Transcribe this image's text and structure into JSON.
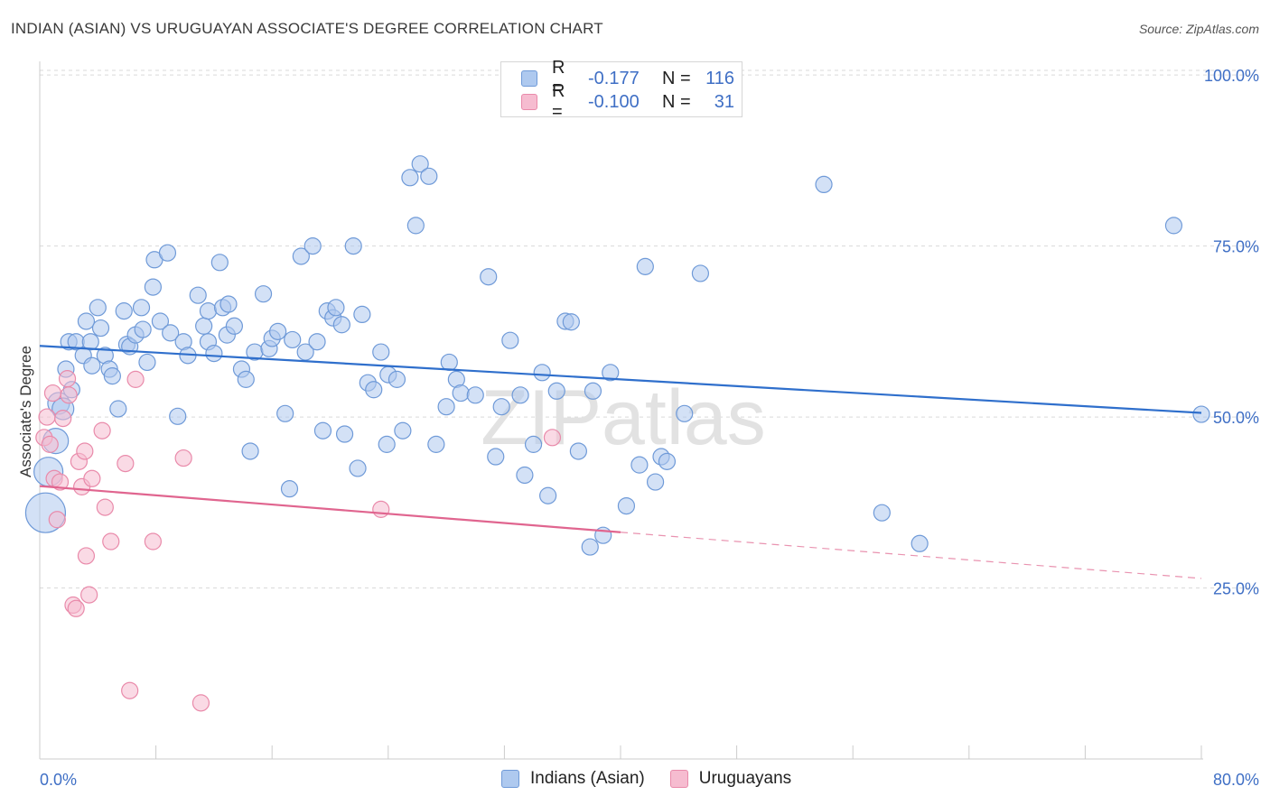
{
  "title": "INDIAN (ASIAN) VS URUGUAYAN ASSOCIATE'S DEGREE CORRELATION CHART",
  "source": "Source: ZipAtlas.com",
  "watermark": "ZIPatlas",
  "colors": {
    "blue_fill": "#aec9ef",
    "blue_stroke": "#6f9ad8",
    "blue_line": "#2f6fcc",
    "pink_fill": "#f6bcd0",
    "pink_stroke": "#e98aaa",
    "pink_line": "#e0658f",
    "grid": "#d9d9d9",
    "tick_text": "#3f6fc5"
  },
  "legend": {
    "rows": [
      {
        "r_label": "R =",
        "r_value": "-0.177",
        "n_label": "N =",
        "n_value": "116"
      },
      {
        "r_label": "R =",
        "r_value": "-0.100",
        "n_label": "N =",
        "n_value": "31"
      }
    ]
  },
  "bottom_legend": [
    "Indians (Asian)",
    "Uruguayans"
  ],
  "chart_data": {
    "type": "scatter",
    "title": "INDIAN (ASIAN) VS URUGUAYAN ASSOCIATE'S DEGREE CORRELATION CHART",
    "xlabel": "",
    "ylabel": "Associate's Degree",
    "xlim": [
      0,
      80
    ],
    "ylim": [
      0,
      102
    ],
    "x_tick_labels": [
      "0.0%",
      "80.0%"
    ],
    "y_ticks": [
      25,
      50,
      75,
      100
    ],
    "y_tick_labels": [
      "25.0%",
      "50.0%",
      "75.0%",
      "100.0%"
    ],
    "series": [
      {
        "name": "Indians (Asian)",
        "r": -0.177,
        "n": 116,
        "trend": {
          "x0": 0,
          "y0": 60.4,
          "x1": 80,
          "y1": 50.6,
          "solid_until": 80
        },
        "points": [
          [
            0.4,
            36,
            22
          ],
          [
            0.6,
            42,
            16
          ],
          [
            1.1,
            46.5,
            14
          ],
          [
            1.3,
            52,
            12
          ],
          [
            1.6,
            51.2,
            12
          ],
          [
            1.8,
            57,
            9
          ],
          [
            2.0,
            61,
            9
          ],
          [
            2.2,
            54,
            9
          ],
          [
            2.5,
            61,
            9
          ],
          [
            3.0,
            59,
            9
          ],
          [
            3.2,
            64,
            9
          ],
          [
            3.5,
            61,
            9
          ],
          [
            3.6,
            57.5,
            9
          ],
          [
            4.0,
            66,
            9
          ],
          [
            4.2,
            63,
            9
          ],
          [
            4.5,
            59,
            9
          ],
          [
            4.8,
            57,
            9
          ],
          [
            5.0,
            56,
            9
          ],
          [
            5.4,
            51.2,
            9
          ],
          [
            5.8,
            65.5,
            9
          ],
          [
            6.0,
            60.6,
            9
          ],
          [
            6.2,
            60.3,
            9
          ],
          [
            6.6,
            62,
            9
          ],
          [
            7.1,
            62.8,
            9
          ],
          [
            7.0,
            66,
            9
          ],
          [
            7.4,
            58,
            9
          ],
          [
            7.8,
            69,
            9
          ],
          [
            7.9,
            73,
            9
          ],
          [
            8.3,
            64,
            9
          ],
          [
            8.8,
            74,
            9
          ],
          [
            9.0,
            62.3,
            9
          ],
          [
            9.5,
            50.1,
            9
          ],
          [
            9.9,
            61,
            9
          ],
          [
            10.2,
            59,
            9
          ],
          [
            10.9,
            67.8,
            9
          ],
          [
            11.3,
            63.3,
            9
          ],
          [
            11.6,
            61,
            9
          ],
          [
            11.6,
            65.5,
            9
          ],
          [
            12.0,
            59.3,
            9
          ],
          [
            12.4,
            72.6,
            9
          ],
          [
            12.6,
            66,
            9
          ],
          [
            12.9,
            62,
            9
          ],
          [
            13.0,
            66.5,
            9
          ],
          [
            13.4,
            63.3,
            9
          ],
          [
            13.9,
            57,
            9
          ],
          [
            14.2,
            55.5,
            9
          ],
          [
            14.5,
            45,
            9
          ],
          [
            14.8,
            59.5,
            9
          ],
          [
            15.4,
            68,
            9
          ],
          [
            15.8,
            60,
            9
          ],
          [
            16.0,
            61.5,
            9
          ],
          [
            16.4,
            62.5,
            9
          ],
          [
            16.9,
            50.5,
            9
          ],
          [
            17.2,
            39.5,
            9
          ],
          [
            17.4,
            61.3,
            9
          ],
          [
            18.0,
            73.5,
            9
          ],
          [
            18.3,
            59.5,
            9
          ],
          [
            18.8,
            75,
            9
          ],
          [
            19.1,
            61,
            9
          ],
          [
            19.5,
            48,
            9
          ],
          [
            19.8,
            65.5,
            9
          ],
          [
            20.2,
            64.5,
            9
          ],
          [
            20.4,
            66,
            9
          ],
          [
            20.8,
            63.5,
            9
          ],
          [
            21.0,
            47.5,
            9
          ],
          [
            21.6,
            75,
            9
          ],
          [
            21.9,
            42.5,
            9
          ],
          [
            22.2,
            65,
            9
          ],
          [
            22.6,
            55,
            9
          ],
          [
            23.0,
            54,
            9
          ],
          [
            23.5,
            59.5,
            9
          ],
          [
            23.9,
            46,
            9
          ],
          [
            24.0,
            56.2,
            9
          ],
          [
            24.6,
            55.5,
            9
          ],
          [
            25.0,
            48,
            9
          ],
          [
            25.5,
            85,
            9
          ],
          [
            25.9,
            78,
            9
          ],
          [
            26.2,
            87,
            9
          ],
          [
            26.8,
            85.2,
            9
          ],
          [
            27.3,
            46,
            9
          ],
          [
            28.0,
            51.5,
            9
          ],
          [
            28.2,
            58,
            9
          ],
          [
            28.7,
            55.5,
            9
          ],
          [
            29.0,
            53.5,
            9
          ],
          [
            30.0,
            53.2,
            9
          ],
          [
            30.9,
            70.5,
            9
          ],
          [
            31.4,
            44.2,
            9
          ],
          [
            31.8,
            51.5,
            9
          ],
          [
            32.4,
            61.2,
            9
          ],
          [
            33.1,
            53.2,
            9
          ],
          [
            33.4,
            41.5,
            9
          ],
          [
            34.0,
            46,
            9
          ],
          [
            34.6,
            56.5,
            9
          ],
          [
            35.0,
            38.5,
            9
          ],
          [
            35.6,
            53.8,
            9
          ],
          [
            36.2,
            64,
            9
          ],
          [
            36.6,
            63.9,
            9
          ],
          [
            37.1,
            45,
            9
          ],
          [
            37.9,
            31,
            9
          ],
          [
            38.1,
            53.8,
            9
          ],
          [
            38.8,
            32.7,
            9
          ],
          [
            39.3,
            56.5,
            9
          ],
          [
            40.4,
            37,
            9
          ],
          [
            41.3,
            43,
            9
          ],
          [
            41.7,
            72,
            9
          ],
          [
            42.4,
            40.5,
            9
          ],
          [
            42.8,
            44.2,
            9
          ],
          [
            43.2,
            43.5,
            9
          ],
          [
            44.4,
            50.5,
            9
          ],
          [
            45.5,
            71,
            9
          ],
          [
            54.0,
            84,
            9
          ],
          [
            58.0,
            36,
            9
          ],
          [
            60.6,
            31.5,
            9
          ],
          [
            78.1,
            78,
            9
          ],
          [
            80.0,
            50.4,
            9
          ]
        ]
      },
      {
        "name": "Uruguayans",
        "r": -0.1,
        "n": 31,
        "trend": {
          "x0": 0,
          "y0": 39.9,
          "x1": 80,
          "y1": 26.4,
          "solid_until": 40
        },
        "points": [
          [
            0.3,
            47,
            9
          ],
          [
            0.5,
            50,
            9
          ],
          [
            0.7,
            46,
            9
          ],
          [
            0.9,
            53.5,
            9
          ],
          [
            1.0,
            41,
            9
          ],
          [
            1.2,
            35,
            9
          ],
          [
            1.4,
            40.5,
            9
          ],
          [
            1.6,
            49.8,
            9
          ],
          [
            1.9,
            55.6,
            9
          ],
          [
            2.0,
            53.2,
            9
          ],
          [
            2.3,
            22.5,
            9
          ],
          [
            2.5,
            22,
            9
          ],
          [
            2.7,
            43.5,
            9
          ],
          [
            2.9,
            39.8,
            9
          ],
          [
            3.1,
            45,
            9
          ],
          [
            3.2,
            29.7,
            9
          ],
          [
            3.4,
            24,
            9
          ],
          [
            3.6,
            41,
            9
          ],
          [
            4.3,
            48,
            9
          ],
          [
            4.5,
            36.8,
            9
          ],
          [
            4.9,
            31.8,
            9
          ],
          [
            5.9,
            43.2,
            9
          ],
          [
            6.2,
            10,
            9
          ],
          [
            6.6,
            55.5,
            9
          ],
          [
            7.8,
            31.8,
            9
          ],
          [
            9.9,
            44,
            9
          ],
          [
            11.1,
            8.2,
            9
          ],
          [
            23.5,
            36.5,
            9
          ],
          [
            35.3,
            47,
            9
          ]
        ]
      }
    ]
  }
}
